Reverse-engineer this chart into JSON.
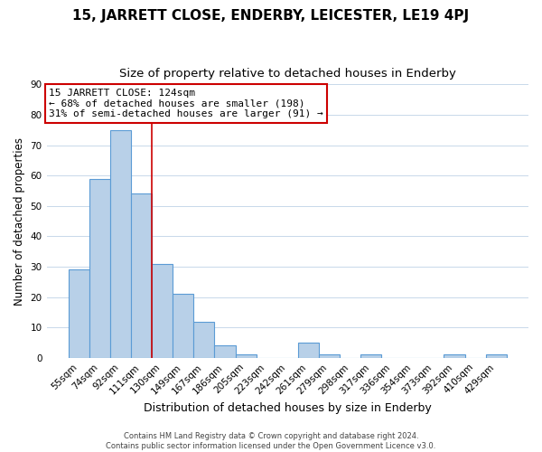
{
  "title1": "15, JARRETT CLOSE, ENDERBY, LEICESTER, LE19 4PJ",
  "title2": "Size of property relative to detached houses in Enderby",
  "xlabel": "Distribution of detached houses by size in Enderby",
  "ylabel": "Number of detached properties",
  "categories": [
    "55sqm",
    "74sqm",
    "92sqm",
    "111sqm",
    "130sqm",
    "149sqm",
    "167sqm",
    "186sqm",
    "205sqm",
    "223sqm",
    "242sqm",
    "261sqm",
    "279sqm",
    "298sqm",
    "317sqm",
    "336sqm",
    "354sqm",
    "373sqm",
    "392sqm",
    "410sqm",
    "429sqm"
  ],
  "values": [
    29,
    59,
    75,
    54,
    31,
    21,
    12,
    4,
    1,
    0,
    0,
    5,
    1,
    0,
    1,
    0,
    0,
    0,
    1,
    0,
    1
  ],
  "bar_color": "#b8d0e8",
  "bar_edgecolor": "#5b9bd5",
  "bar_linewidth": 0.8,
  "vline_color": "#cc0000",
  "vline_linewidth": 1.2,
  "vline_position": 4.5,
  "ylim": [
    0,
    90
  ],
  "yticks": [
    0,
    10,
    20,
    30,
    40,
    50,
    60,
    70,
    80,
    90
  ],
  "grid_color": "#c8d8ea",
  "annotation_title": "15 JARRETT CLOSE: 124sqm",
  "annotation_line1": "← 68% of detached houses are smaller (198)",
  "annotation_line2": "31% of semi-detached houses are larger (91) →",
  "annotation_box_edgecolor": "#cc0000",
  "footer1": "Contains HM Land Registry data © Crown copyright and database right 2024.",
  "footer2": "Contains public sector information licensed under the Open Government Licence v3.0.",
  "bg_color": "#ffffff",
  "title1_fontsize": 11,
  "title2_fontsize": 9.5,
  "xlabel_fontsize": 9,
  "ylabel_fontsize": 8.5,
  "tick_fontsize": 7.5,
  "annotation_fontsize": 8,
  "footer_fontsize": 6
}
